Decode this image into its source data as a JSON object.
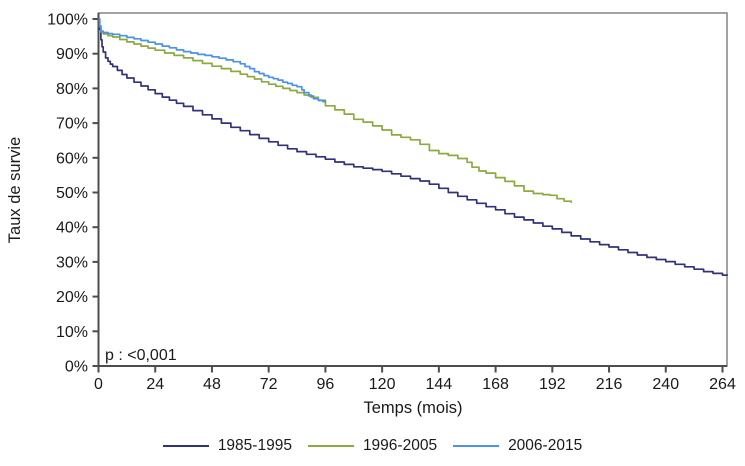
{
  "chart_data": {
    "type": "line",
    "title": "",
    "xlabel": "Temps (mois)",
    "ylabel": "Taux de survie",
    "annotation": "p : <0,001",
    "xlim": [
      0,
      266
    ],
    "ylim": [
      0,
      100
    ],
    "grid": false,
    "legend_position": "bottom",
    "x_ticks": [
      0,
      24,
      48,
      72,
      96,
      120,
      144,
      168,
      192,
      216,
      240,
      264
    ],
    "y_ticks": [
      "0%",
      "10%",
      "20%",
      "30%",
      "40%",
      "50%",
      "60%",
      "70%",
      "80%",
      "90%",
      "100%"
    ],
    "axis_color": "#4d4d4d",
    "box_color": "#8c8c8c",
    "series": [
      {
        "name": "1985-1995",
        "color": "#31327a",
        "points": [
          [
            0,
            100
          ],
          [
            0.5,
            97
          ],
          [
            1,
            94
          ],
          [
            1.5,
            92
          ],
          [
            2,
            90.5
          ],
          [
            3,
            88.8
          ],
          [
            4,
            87.8
          ],
          [
            5,
            87
          ],
          [
            6,
            86.3
          ],
          [
            8,
            85.2
          ],
          [
            10,
            84
          ],
          [
            12,
            83
          ],
          [
            15,
            81.8
          ],
          [
            18,
            80.7
          ],
          [
            21,
            79.6
          ],
          [
            24,
            78.5
          ],
          [
            27,
            77.5
          ],
          [
            30,
            76.6
          ],
          [
            33,
            75.7
          ],
          [
            36,
            74.8
          ],
          [
            40,
            73.6
          ],
          [
            44,
            72.4
          ],
          [
            48,
            71.2
          ],
          [
            52,
            70
          ],
          [
            56,
            68.8
          ],
          [
            60,
            67.8
          ],
          [
            64,
            66.7
          ],
          [
            68,
            65.6
          ],
          [
            72,
            64.6
          ],
          [
            76,
            63.6
          ],
          [
            80,
            62.6
          ],
          [
            84,
            61.8
          ],
          [
            88,
            61
          ],
          [
            92,
            60.3
          ],
          [
            96,
            59.6
          ],
          [
            100,
            58.8
          ],
          [
            104,
            58.1
          ],
          [
            108,
            57.4
          ],
          [
            112,
            57
          ],
          [
            116,
            56.6
          ],
          [
            120,
            56.1
          ],
          [
            124,
            55.4
          ],
          [
            128,
            54.7
          ],
          [
            132,
            54
          ],
          [
            136,
            53.3
          ],
          [
            140,
            52.4
          ],
          [
            144,
            51.2
          ],
          [
            148,
            50
          ],
          [
            152,
            48.9
          ],
          [
            156,
            47.9
          ],
          [
            160,
            46.9
          ],
          [
            164,
            45.9
          ],
          [
            168,
            45
          ],
          [
            172,
            43.9
          ],
          [
            176,
            42.9
          ],
          [
            180,
            42.1
          ],
          [
            184,
            41.2
          ],
          [
            188,
            40.3
          ],
          [
            192,
            39.5
          ],
          [
            196,
            38.5
          ],
          [
            200,
            37.5
          ],
          [
            204,
            36.6
          ],
          [
            208,
            35.8
          ],
          [
            212,
            35
          ],
          [
            216,
            34.3
          ],
          [
            220,
            33.5
          ],
          [
            224,
            32.7
          ],
          [
            228,
            32
          ],
          [
            232,
            31.3
          ],
          [
            236,
            30.7
          ],
          [
            240,
            30.1
          ],
          [
            244,
            29.3
          ],
          [
            248,
            28.6
          ],
          [
            252,
            27.9
          ],
          [
            256,
            27.2
          ],
          [
            260,
            26.7
          ],
          [
            264,
            26.2
          ],
          [
            266,
            26
          ]
        ]
      },
      {
        "name": "1996-2005",
        "color": "#8caa3e",
        "points": [
          [
            0,
            100
          ],
          [
            0.5,
            97.8
          ],
          [
            1,
            96.3
          ],
          [
            2,
            95.7
          ],
          [
            4,
            95.2
          ],
          [
            6,
            94.8
          ],
          [
            9,
            94.1
          ],
          [
            12,
            93.4
          ],
          [
            15,
            92.8
          ],
          [
            18,
            92.2
          ],
          [
            21,
            91.6
          ],
          [
            24,
            91
          ],
          [
            28,
            90.2
          ],
          [
            32,
            89.5
          ],
          [
            36,
            88.8
          ],
          [
            40,
            88
          ],
          [
            44,
            87.2
          ],
          [
            48,
            86.4
          ],
          [
            52,
            85.7
          ],
          [
            56,
            84.9
          ],
          [
            60,
            84.1
          ],
          [
            63,
            83.4
          ],
          [
            66,
            82.7
          ],
          [
            69,
            81.9
          ],
          [
            72,
            81.2
          ],
          [
            75,
            80.6
          ],
          [
            78,
            80
          ],
          [
            81,
            79.4
          ],
          [
            84,
            78.8
          ],
          [
            87,
            78.1
          ],
          [
            90,
            77.4
          ],
          [
            93,
            76.6
          ],
          [
            96,
            75
          ],
          [
            100,
            73.8
          ],
          [
            104,
            72.6
          ],
          [
            108,
            71.1
          ],
          [
            112,
            70.3
          ],
          [
            116,
            69.2
          ],
          [
            120,
            68
          ],
          [
            124,
            66.6
          ],
          [
            128,
            65.9
          ],
          [
            132,
            65.2
          ],
          [
            136,
            63.9
          ],
          [
            140,
            62.1
          ],
          [
            144,
            61.2
          ],
          [
            148,
            60.7
          ],
          [
            152,
            59.8
          ],
          [
            156,
            58.7
          ],
          [
            158,
            57.3
          ],
          [
            161,
            56.2
          ],
          [
            164,
            55.6
          ],
          [
            168,
            54.3
          ],
          [
            172,
            53.2
          ],
          [
            176,
            51.9
          ],
          [
            180,
            50.4
          ],
          [
            184,
            49.7
          ],
          [
            188,
            49.4
          ],
          [
            191,
            49.2
          ],
          [
            194,
            48.2
          ],
          [
            197,
            47.5
          ],
          [
            200,
            47
          ]
        ]
      },
      {
        "name": "2006-2015",
        "color": "#4a93e6",
        "points": [
          [
            0,
            100
          ],
          [
            0.5,
            98
          ],
          [
            1,
            96.5
          ],
          [
            2,
            96.1
          ],
          [
            4,
            95.8
          ],
          [
            6,
            95.6
          ],
          [
            9,
            95.2
          ],
          [
            12,
            94.7
          ],
          [
            15,
            94.3
          ],
          [
            18,
            93.8
          ],
          [
            21,
            93.3
          ],
          [
            24,
            92.8
          ],
          [
            27,
            92.2
          ],
          [
            30,
            91.7
          ],
          [
            33,
            91.1
          ],
          [
            36,
            90.6
          ],
          [
            39,
            90.2
          ],
          [
            42,
            89.8
          ],
          [
            45,
            89.5
          ],
          [
            48,
            89.1
          ],
          [
            51,
            88.7
          ],
          [
            54,
            88.2
          ],
          [
            57,
            87.7
          ],
          [
            60,
            87.1
          ],
          [
            62,
            86.3
          ],
          [
            64,
            85.7
          ],
          [
            66,
            84.8
          ],
          [
            68,
            84.3
          ],
          [
            70,
            83.7
          ],
          [
            72,
            83.2
          ],
          [
            74,
            82.8
          ],
          [
            76,
            82.4
          ],
          [
            78,
            81.8
          ],
          [
            80,
            81.4
          ],
          [
            82,
            80.9
          ],
          [
            84,
            80.5
          ],
          [
            86,
            79.6
          ],
          [
            87,
            78.8
          ],
          [
            89,
            77.8
          ],
          [
            91,
            77
          ],
          [
            93,
            76.5
          ],
          [
            95,
            76.2
          ],
          [
            96,
            76
          ]
        ]
      }
    ]
  }
}
